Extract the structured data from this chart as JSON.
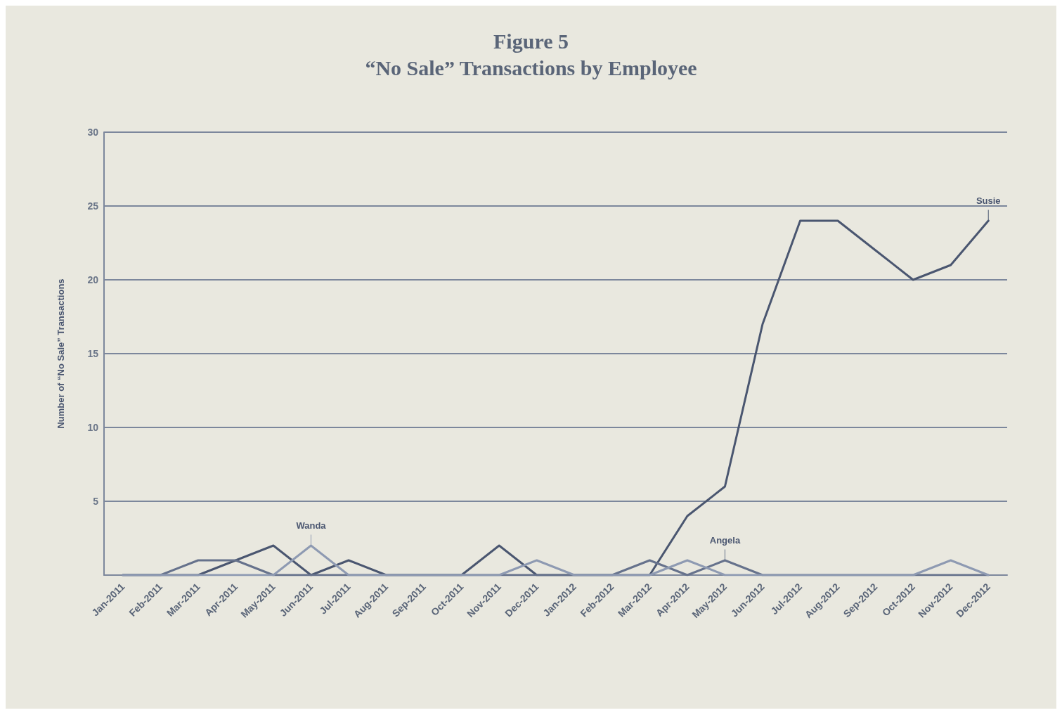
{
  "chart_data": {
    "type": "line",
    "title": "Figure 5",
    "subtitle": "“No Sale” Transactions by Employee",
    "ylabel": "Number of “No Sale” Transactions",
    "categories": [
      "Jan-2011",
      "Feb-2011",
      "Mar-2011",
      "Apr-2011",
      "May-2011",
      "Jun-2011",
      "Jul-2011",
      "Aug-2011",
      "Sep-2011",
      "Oct-2011",
      "Nov-2011",
      "Dec-2011",
      "Jan-2012",
      "Feb-2012",
      "Mar-2012",
      "Apr-2012",
      "May-2012",
      "Jun-2012",
      "Jul-2012",
      "Aug-2012",
      "Sep-2012",
      "Oct-2012",
      "Nov-2012",
      "Dec-2012"
    ],
    "series": [
      {
        "name": "Susie",
        "color": "#4a5670",
        "values": [
          0,
          0,
          0,
          1,
          2,
          0,
          1,
          0,
          0,
          0,
          2,
          0,
          0,
          0,
          0,
          4,
          6,
          17,
          24,
          24,
          22,
          20,
          21,
          24
        ]
      },
      {
        "name": "Angela",
        "color": "#66728c",
        "values": [
          0,
          0,
          1,
          1,
          0,
          0,
          0,
          0,
          0,
          0,
          0,
          0,
          0,
          0,
          1,
          0,
          1,
          0,
          0,
          0,
          0,
          0,
          0,
          0
        ]
      },
      {
        "name": "Wanda",
        "color": "#8e9ab2",
        "values": [
          0,
          0,
          0,
          0,
          0,
          2,
          0,
          0,
          0,
          0,
          0,
          1,
          0,
          0,
          0,
          1,
          0,
          0,
          0,
          0,
          0,
          0,
          1,
          0
        ]
      }
    ],
    "ylim": [
      0,
      30
    ],
    "yticks": [
      {
        "value": 0,
        "label": null
      },
      5,
      10,
      15,
      20,
      25,
      30
    ],
    "grid": "y",
    "legend": false,
    "marker": "none",
    "line_style": "solid"
  }
}
